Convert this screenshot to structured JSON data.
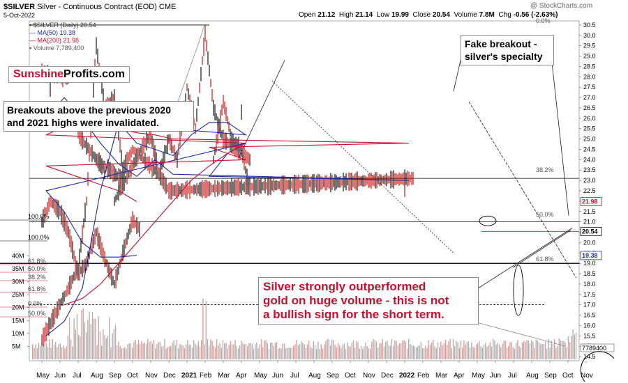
{
  "header": {
    "symbol": "$SILVER",
    "name": "Silver - Continuous Contract (EOD) CME",
    "date": "5-Oct-2022",
    "open_label": "Open",
    "open": "21.12",
    "high_label": "High",
    "high": "21.14",
    "low_label": "Low",
    "low": "19.99",
    "close_label": "Close",
    "close": "20.54",
    "volume_label": "Volume",
    "volume": "7.8M",
    "chg_label": "Chg",
    "chg": "-0.56 (-2.63%)",
    "watermark": "@ StockCharts.com"
  },
  "legend": {
    "price": "$SILVER (Daily) 20.54",
    "ma50": "MA(50) 19.38",
    "ma200": "MA(200) 21.98",
    "volume": "Volume 7,789,400"
  },
  "logo": {
    "part1": "Sunshine",
    "part2": "Profits.com"
  },
  "annotations": {
    "breakouts": "Breakouts above the previous 2020 and 2021 highs were invalidated.",
    "fake_line1": "Fake breakout -",
    "fake_line2": "silver's specialty",
    "outperf_line1": "Silver strongly outperformed",
    "outperf_line2": "gold on huge volume - this is not",
    "outperf_line3": "a bullish sign for the short term."
  },
  "colors": {
    "price": "#000000",
    "down": "#cc0000",
    "ma50": "#1f2aa8",
    "ma200": "#c8102e",
    "volume_bar": "#d9a0a0",
    "volume_bar_gray": "#b0b0b0",
    "annotation_red": "#c8102e"
  },
  "chart_data": {
    "type": "line",
    "title": "$SILVER Silver - Continuous Contract (EOD) CME",
    "x_tick_labels": [
      "May",
      "Jun",
      "Jul",
      "Aug",
      "Sep",
      "Oct",
      "Nov",
      "Dec",
      "2021",
      "Feb",
      "Mar",
      "Apr",
      "May",
      "Jun",
      "Jul",
      "Aug",
      "Sep",
      "Oct",
      "Nov",
      "Dec",
      "2022",
      "Feb",
      "Mar",
      "Apr",
      "May",
      "Jun",
      "Jul",
      "Aug",
      "Sep",
      "Oct",
      "Nov"
    ],
    "y_ticks": [
      14.5,
      15.0,
      15.5,
      16.0,
      16.5,
      17.0,
      17.5,
      18.0,
      18.5,
      19.0,
      19.5,
      20.0,
      20.5,
      21.0,
      21.5,
      22.0,
      22.5,
      23.0,
      23.5,
      24.0,
      24.5,
      25.0,
      25.5,
      26.0,
      26.5,
      27.0,
      27.5,
      28.0,
      28.5,
      29.0,
      29.5,
      30.0,
      30.5
    ],
    "y_tick_labels": [
      "14.5",
      "15.0",
      "15.5",
      "16.0",
      "16.5",
      "17.0",
      "17.5",
      "18.0",
      "18.5",
      "19.0",
      "19.5",
      "20.0",
      "20.5",
      "21.0",
      "21.5",
      "22.0",
      "22.5",
      "23.0",
      "23.5",
      "24.0",
      "24.5",
      "25.0",
      "25.5",
      "26.0",
      "26.5",
      "27.0",
      "27.5",
      "28.0",
      "28.5",
      "29.0",
      "29.5",
      "30.0",
      "30.5"
    ],
    "ylim": [
      14.3,
      30.7
    ],
    "volume_ticks": [
      5,
      10,
      15,
      20,
      25,
      30,
      35,
      40
    ],
    "volume_tick_labels": [
      "5M",
      "10M",
      "15M",
      "20M",
      "25M",
      "30M",
      "35M",
      "40M"
    ],
    "price_tags": [
      {
        "value": 21.98,
        "label": "21.98",
        "color": "#c8102e"
      },
      {
        "value": 20.54,
        "label": "20.54",
        "color": "#000000"
      },
      {
        "value": 19.38,
        "label": "19.38",
        "color": "#1f2aa8"
      }
    ],
    "volume_tag": "7789400",
    "series": [
      {
        "name": "$SILVER (Daily) 20.54",
        "points": [
          [
            "May",
            15.3
          ],
          [
            "Jun",
            17.8
          ],
          [
            "Jul",
            18.8
          ],
          [
            "Jul",
            22.0
          ],
          [
            "Aug",
            29.5
          ],
          [
            "Aug",
            26.5
          ],
          [
            "Sep",
            27.0
          ],
          [
            "Sep",
            23.5
          ],
          [
            "Oct",
            24.5
          ],
          [
            "Nov",
            23.3
          ],
          [
            "Dec",
            25.0
          ],
          [
            "Dec",
            24.0
          ],
          [
            "2021",
            27.5
          ],
          [
            "2021",
            25.5
          ],
          [
            "Feb",
            30.1
          ],
          [
            "Feb",
            26.5
          ],
          [
            "Mar",
            25.0
          ],
          [
            "Apr",
            24.0
          ],
          [
            "Apr",
            26.3
          ],
          [
            "May",
            27.5
          ],
          [
            "May",
            28.2
          ],
          [
            "Jun",
            27.9
          ],
          [
            "Jun",
            26.3
          ],
          [
            "Jul",
            25.8
          ],
          [
            "Jul",
            25.2
          ],
          [
            "Aug",
            23.5
          ],
          [
            "Aug",
            24.0
          ],
          [
            "Sep",
            23.0
          ],
          [
            "Sep",
            22.0
          ],
          [
            "Oct",
            24.5
          ],
          [
            "Nov",
            25.2
          ],
          [
            "Nov",
            23.3
          ],
          [
            "Dec",
            22.5
          ],
          [
            "2022",
            23.1
          ],
          [
            "2022",
            22.5
          ],
          [
            "Feb",
            24.0
          ],
          [
            "Mar",
            26.8
          ],
          [
            "Mar",
            25.0
          ],
          [
            "Apr",
            24.5
          ],
          [
            "Apr",
            22.5
          ],
          [
            "May",
            21.0
          ],
          [
            "May",
            22.0
          ],
          [
            "Jun",
            21.5
          ],
          [
            "Jun",
            20.5
          ],
          [
            "Jul",
            18.5
          ],
          [
            "Jul",
            19.0
          ],
          [
            "Aug",
            20.5
          ],
          [
            "Aug",
            19.2
          ],
          [
            "Sep",
            18.0
          ],
          [
            "Sep",
            19.5
          ],
          [
            "Oct",
            21.1
          ],
          [
            "Oct",
            20.54
          ]
        ]
      },
      {
        "name": "MA(50) 19.38",
        "points": [
          [
            "May",
            15.5
          ],
          [
            "Jun",
            16.2
          ],
          [
            "Jul",
            17.8
          ],
          [
            "Aug",
            22.5
          ],
          [
            "Sep",
            25.8
          ],
          [
            "Oct",
            24.8
          ],
          [
            "Nov",
            24.5
          ],
          [
            "Dec",
            24.2
          ],
          [
            "2021",
            25.2
          ],
          [
            "Feb",
            25.8
          ],
          [
            "Mar",
            25.8
          ],
          [
            "Apr",
            25.2
          ],
          [
            "May",
            26.0
          ],
          [
            "Jun",
            27.0
          ],
          [
            "Jul",
            26.0
          ],
          [
            "Aug",
            24.8
          ],
          [
            "Sep",
            23.8
          ],
          [
            "Oct",
            23.2
          ],
          [
            "Nov",
            24.0
          ],
          [
            "Dec",
            23.3
          ],
          [
            "2022",
            23.0
          ],
          [
            "Feb",
            23.2
          ],
          [
            "Mar",
            24.3
          ],
          [
            "Apr",
            24.8
          ],
          [
            "May",
            22.5
          ],
          [
            "Jun",
            21.5
          ],
          [
            "Jul",
            20.0
          ],
          [
            "Aug",
            19.3
          ],
          [
            "Sep",
            19.3
          ],
          [
            "Oct",
            19.38
          ]
        ]
      },
      {
        "name": "MA(200) 21.98",
        "points": [
          [
            "Jun",
            17.0
          ],
          [
            "Jul",
            17.3
          ],
          [
            "Aug",
            18.0
          ],
          [
            "Sep",
            19.0
          ],
          [
            "Oct",
            20.0
          ],
          [
            "Nov",
            21.0
          ],
          [
            "Dec",
            22.0
          ],
          [
            "2021",
            23.0
          ],
          [
            "Feb",
            23.7
          ],
          [
            "Mar",
            24.3
          ],
          [
            "Apr",
            24.8
          ],
          [
            "May",
            25.2
          ],
          [
            "Jun",
            25.6
          ],
          [
            "Jul",
            25.8
          ],
          [
            "Aug",
            25.7
          ],
          [
            "Sep",
            25.5
          ],
          [
            "Oct",
            25.3
          ],
          [
            "Nov",
            25.2
          ],
          [
            "Dec",
            25.0
          ],
          [
            "2022",
            24.8
          ],
          [
            "Feb",
            24.6
          ],
          [
            "Mar",
            24.3
          ],
          [
            "Apr",
            24.0
          ],
          [
            "May",
            23.7
          ],
          [
            "Jun",
            23.4
          ],
          [
            "Jul",
            23.1
          ],
          [
            "Aug",
            22.8
          ],
          [
            "Sep",
            22.5
          ],
          [
            "Oct",
            21.98
          ]
        ]
      }
    ],
    "fib_left": [
      {
        "label": "100.0%"
      },
      {
        "label": "100.0%"
      },
      {
        "label": "61.8%"
      },
      {
        "label": "50.0%"
      },
      {
        "label": "38.2%"
      },
      {
        "label": "61.8%"
      },
      {
        "label": "0.0%"
      },
      {
        "label": "50.0%"
      }
    ],
    "fib_right": [
      {
        "label": "0.0%",
        "value": 30.5
      },
      {
        "label": "38.2%",
        "value": 23.3
      },
      {
        "label": "50.0%",
        "value": 21.15
      },
      {
        "label": "61.8%",
        "value": 19.0
      }
    ],
    "legend": "top-left",
    "grid": false
  }
}
